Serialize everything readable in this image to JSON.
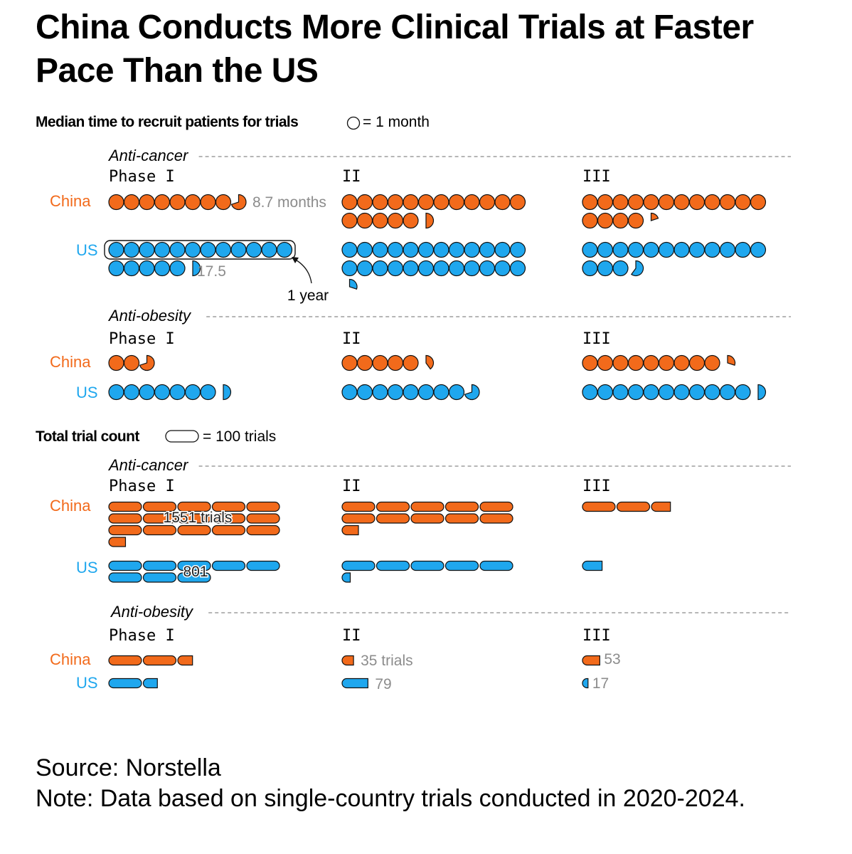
{
  "title": "China Conducts More Clinical Trials at Faster Pace Than the US",
  "source": "Source: Norstella",
  "note": "Note: Data based on single-country trials conducted in 2020-2024.",
  "colors": {
    "china": "#f26a1b",
    "us": "#1fa7ee",
    "muted": "#8c8c8c",
    "rule": "#8a8a8a"
  },
  "chart_data": [
    {
      "type": "pictogram",
      "title": "Median time to recruit patients for trials",
      "legend_label": "= 1 month",
      "unit": "months",
      "icon_value": 1,
      "countries": [
        "China",
        "US"
      ],
      "phases": [
        "Phase I",
        "II",
        "III"
      ],
      "annotations": {
        "china_anticancer_phase1": "8.7 months",
        "us_anticancer_phase1": "17.5",
        "bracket": "1 year"
      },
      "groups": [
        {
          "name": "Anti-cancer",
          "china": [
            8.7,
            17.5,
            16.2
          ],
          "us": [
            17.5,
            24.3,
            15.6
          ]
        },
        {
          "name": "Anti-obesity",
          "china": [
            2.7,
            5.4,
            9.3
          ],
          "us": [
            7.5,
            8.7,
            11.5
          ]
        }
      ]
    },
    {
      "type": "pictogram",
      "title": "Total trial count",
      "legend_label": "= 100 trials",
      "unit": "trials",
      "icon_value": 100,
      "countries": [
        "China",
        "US"
      ],
      "phases": [
        "Phase I",
        "II",
        "III"
      ],
      "annotations": {
        "china_anticancer_phase1": "1551 trials",
        "us_anticancer_phase1": "801",
        "china_antiobesity_phase2": "35 trials"
      },
      "groups": [
        {
          "name": "Anti-cancer",
          "china": [
            1551,
            1050,
            258
          ],
          "us": [
            801,
            525,
            60
          ]
        },
        {
          "name": "Anti-obesity",
          "china": [
            245,
            35,
            53
          ],
          "us": [
            143,
            79,
            17
          ]
        }
      ]
    }
  ]
}
